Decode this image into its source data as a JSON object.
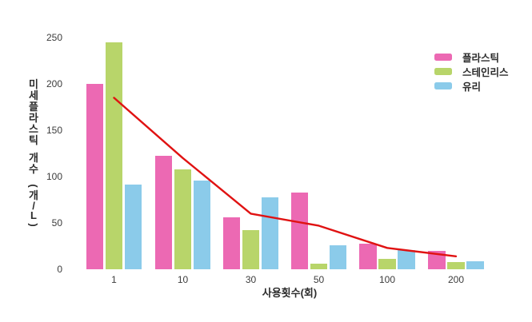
{
  "figure": {
    "background_color": "#ffffff",
    "tick_text_color": "#3c3c3c",
    "label_text_color": "#2b2b2b"
  },
  "chart_data": {
    "type": "bar",
    "title": "",
    "xlabel": "사용횟수(회)",
    "ylabel": "미세플라스틱 개수(개/L)",
    "ylabel_vertical_chars": [
      "미",
      "세",
      "플",
      "라",
      "스",
      "틱",
      " ",
      "개",
      "수",
      " ",
      "(",
      "개",
      "/",
      "L",
      ")"
    ],
    "categories": [
      "1",
      "10",
      "30",
      "50",
      "100",
      "200"
    ],
    "y_ticks": [
      0,
      50,
      100,
      150,
      200,
      250
    ],
    "ylim": [
      0,
      250
    ],
    "grid": false,
    "axis_lines": false,
    "legend_position": "upper right",
    "series": [
      {
        "name": "플라스틱",
        "color": "#ec69b3",
        "values": [
          200,
          122,
          56,
          83,
          28,
          20
        ]
      },
      {
        "name": "스테인리스",
        "color": "#b8d56a",
        "values": [
          245,
          108,
          42,
          6,
          11,
          8
        ]
      },
      {
        "name": "유리",
        "color": "#8bcbea",
        "values": [
          91,
          96,
          78,
          26,
          21,
          9
        ]
      }
    ],
    "trend_line": {
      "color": "#e01212",
      "values": [
        185,
        120,
        60,
        47,
        23,
        14
      ]
    }
  }
}
